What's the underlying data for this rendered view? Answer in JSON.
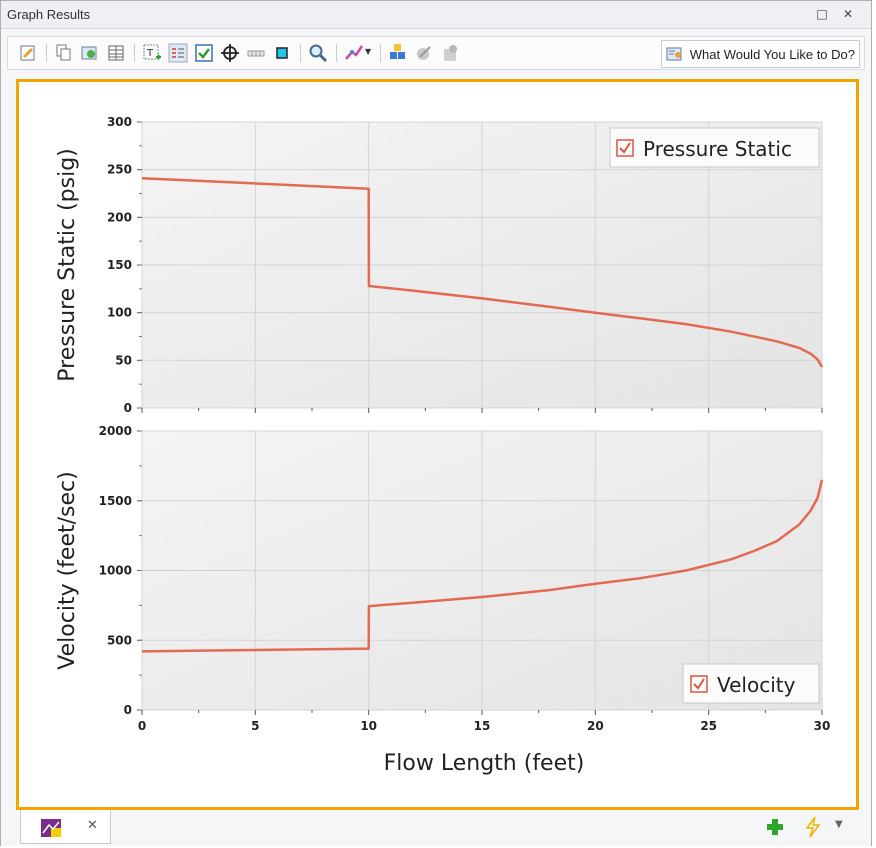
{
  "window": {
    "title": "Graph Results"
  },
  "title_buttons": {
    "restore": "□",
    "close": "✕"
  },
  "toolbar": {
    "what_would_you_like": "What Would You Like to Do?"
  },
  "tabs": {
    "close": "✕"
  },
  "colors": {
    "series": "#e26a52",
    "accent_border": "#f0a500",
    "plot_bg": "#e8e8e8"
  },
  "chart_data": [
    {
      "type": "line",
      "xlabel": "",
      "ylabel": "Pressure Static (psig)",
      "xlim": [
        0,
        30
      ],
      "ylim": [
        0,
        300
      ],
      "yticks": [
        0,
        50,
        100,
        150,
        200,
        250,
        300
      ],
      "grid": true,
      "legend": {
        "position": "top-right",
        "label": "Pressure Static",
        "checked": true
      },
      "series": [
        {
          "name": "Pressure Static",
          "x": [
            0,
            10,
            10,
            10.01,
            12,
            15,
            18,
            20,
            22,
            24,
            26,
            28,
            29,
            29.5,
            29.8,
            30
          ],
          "y": [
            241,
            230,
            230,
            128,
            123,
            115,
            106,
            100,
            94,
            88,
            80,
            70,
            63,
            57,
            51,
            43
          ]
        }
      ]
    },
    {
      "type": "line",
      "xlabel": "Flow Length (feet)",
      "ylabel": "Velocity (feet/sec)",
      "xlim": [
        0,
        30
      ],
      "ylim": [
        0,
        2000
      ],
      "xticks": [
        0,
        5,
        10,
        15,
        20,
        25,
        30
      ],
      "yticks": [
        0,
        500,
        1000,
        1500,
        2000
      ],
      "grid": true,
      "legend": {
        "position": "bottom-right",
        "label": "Velocity",
        "checked": true
      },
      "series": [
        {
          "name": "Velocity",
          "x": [
            0,
            10,
            10,
            10.01,
            12,
            15,
            18,
            20,
            22,
            24,
            26,
            27,
            28,
            29,
            29.5,
            29.8,
            30
          ],
          "y": [
            420,
            440,
            440,
            745,
            770,
            810,
            860,
            905,
            945,
            1000,
            1080,
            1140,
            1210,
            1330,
            1430,
            1520,
            1650
          ]
        }
      ]
    }
  ]
}
